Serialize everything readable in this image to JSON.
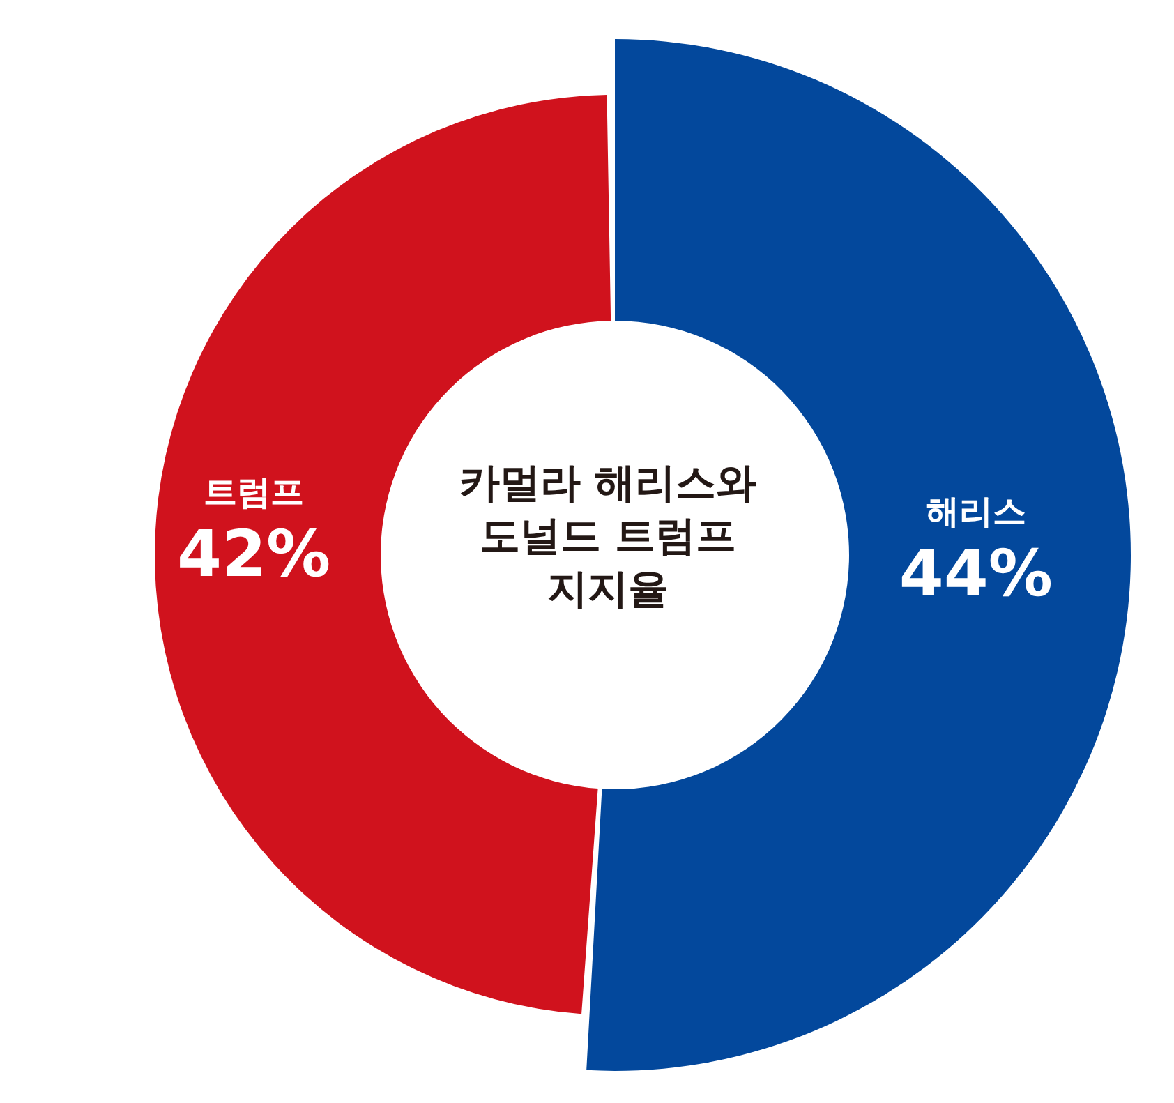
{
  "chart_data": {
    "type": "donut",
    "title": "카멀라 해리스와\n도널드 트럼프\n지지율",
    "categories": [
      "해리스",
      "트럼프"
    ],
    "values": [
      44,
      42
    ],
    "colors": [
      "#03489c",
      "#d0121d"
    ],
    "value_labels": [
      "44%",
      "42%"
    ]
  }
}
